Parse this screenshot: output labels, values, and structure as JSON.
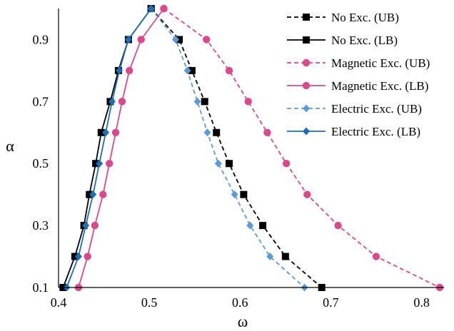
{
  "chart_data": {
    "type": "line",
    "title": "",
    "xlabel": "ω",
    "ylabel": "α",
    "xlim": [
      0.4,
      0.82
    ],
    "ylim": [
      0.1,
      1.0
    ],
    "xticks": [
      0.4,
      0.5,
      0.6,
      0.7,
      0.8
    ],
    "xtick_labels": [
      "0.4",
      "0.5",
      "0.6",
      "0.7",
      "0.8"
    ],
    "yticks": [
      0.1,
      0.3,
      0.5,
      0.7,
      0.9
    ],
    "ytick_labels": [
      "0.1",
      "0.3",
      "0.5",
      "0.7",
      "0.9"
    ],
    "grid": false,
    "legend_position": "top-right",
    "series": [
      {
        "name": "No Exc. (UB)",
        "color": "#000000",
        "dashed": true,
        "marker": "square",
        "points": [
          [
            0.502,
            1.0
          ],
          [
            0.533,
            0.9
          ],
          [
            0.547,
            0.8
          ],
          [
            0.561,
            0.7
          ],
          [
            0.574,
            0.6
          ],
          [
            0.588,
            0.5
          ],
          [
            0.604,
            0.4
          ],
          [
            0.625,
            0.3
          ],
          [
            0.65,
            0.2
          ],
          [
            0.69,
            0.1
          ]
        ]
      },
      {
        "name": "No Exc. (LB)",
        "color": "#000000",
        "dashed": false,
        "marker": "square",
        "points": [
          [
            0.405,
            0.1
          ],
          [
            0.418,
            0.2
          ],
          [
            0.428,
            0.3
          ],
          [
            0.434,
            0.4
          ],
          [
            0.441,
            0.5
          ],
          [
            0.447,
            0.6
          ],
          [
            0.457,
            0.7
          ],
          [
            0.466,
            0.8
          ],
          [
            0.477,
            0.9
          ],
          [
            0.502,
            1.0
          ]
        ]
      },
      {
        "name": "Magnetic Exc. (UB)",
        "color": "#d9498c",
        "dashed": true,
        "marker": "circle",
        "points": [
          [
            0.516,
            1.0
          ],
          [
            0.563,
            0.9
          ],
          [
            0.588,
            0.8
          ],
          [
            0.609,
            0.7
          ],
          [
            0.63,
            0.6
          ],
          [
            0.651,
            0.5
          ],
          [
            0.674,
            0.4
          ],
          [
            0.708,
            0.3
          ],
          [
            0.75,
            0.2
          ],
          [
            0.82,
            0.1
          ]
        ]
      },
      {
        "name": "Magnetic Exc. (LB)",
        "color": "#d9498c",
        "dashed": false,
        "marker": "circle",
        "points": [
          [
            0.422,
            0.1
          ],
          [
            0.432,
            0.2
          ],
          [
            0.44,
            0.3
          ],
          [
            0.449,
            0.4
          ],
          [
            0.456,
            0.5
          ],
          [
            0.463,
            0.6
          ],
          [
            0.47,
            0.7
          ],
          [
            0.478,
            0.8
          ],
          [
            0.491,
            0.9
          ],
          [
            0.516,
            1.0
          ]
        ]
      },
      {
        "name": "Electric Exc. (UB)",
        "color": "#5b9bd5",
        "dashed": true,
        "marker": "diamond",
        "points": [
          [
            0.502,
            1.0
          ],
          [
            0.529,
            0.9
          ],
          [
            0.542,
            0.8
          ],
          [
            0.553,
            0.7
          ],
          [
            0.564,
            0.6
          ],
          [
            0.576,
            0.5
          ],
          [
            0.594,
            0.4
          ],
          [
            0.611,
            0.3
          ],
          [
            0.633,
            0.2
          ],
          [
            0.671,
            0.1
          ]
        ]
      },
      {
        "name": "Electric Exc. (LB)",
        "color": "#1f6eb5",
        "dashed": false,
        "marker": "diamond",
        "points": [
          [
            0.409,
            0.1
          ],
          [
            0.422,
            0.2
          ],
          [
            0.43,
            0.3
          ],
          [
            0.438,
            0.4
          ],
          [
            0.445,
            0.5
          ],
          [
            0.452,
            0.6
          ],
          [
            0.459,
            0.7
          ],
          [
            0.467,
            0.8
          ],
          [
            0.477,
            0.9
          ],
          [
            0.502,
            1.0
          ]
        ]
      }
    ]
  }
}
